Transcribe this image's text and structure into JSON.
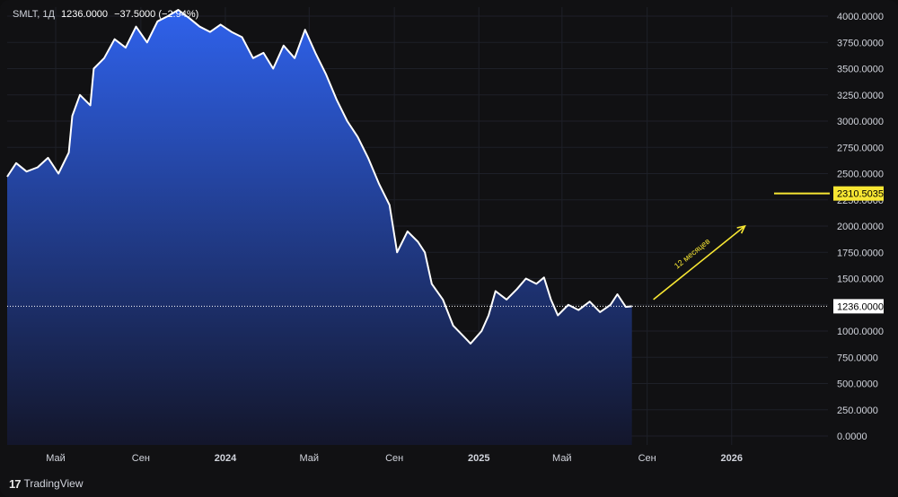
{
  "legend": {
    "symbol": "SMLT, 1Д",
    "price": "1236.0000",
    "change": "−37.5000 (−2.94%)"
  },
  "brand": {
    "name": "TradingView"
  },
  "colors": {
    "background": "#111113",
    "price_line": "#ffffff",
    "area_top": "#2f62ec",
    "area_bottom": "#13162b",
    "axis_text": "#d1d4dc",
    "grid": "#1e2028",
    "annotation": "#f7e633",
    "target_label_bg": "#f7e633",
    "current_label_bg": "#ffffff"
  },
  "chart_data": {
    "type": "area",
    "title": "",
    "xlabel": "",
    "ylabel": "",
    "ylim": [
      0,
      4000
    ],
    "yticks": [
      "4000.0000",
      "3750.0000",
      "3500.0000",
      "3250.0000",
      "3000.0000",
      "2750.0000",
      "2500.0000",
      "2250.0000",
      "2000.0000",
      "1750.0000",
      "1500.0000",
      "1250.0000",
      "1000.0000",
      "750.0000",
      "500.0000",
      "250.0000",
      "0.0000"
    ],
    "ytick_values": [
      4000,
      3750,
      3500,
      3250,
      3000,
      2750,
      2500,
      2250,
      2000,
      1750,
      1500,
      1250,
      1000,
      750,
      500,
      250,
      0
    ],
    "xticks": [
      {
        "date": "2023-05-01",
        "label": "Май",
        "bold": false
      },
      {
        "date": "2023-09-01",
        "label": "Сен",
        "bold": false
      },
      {
        "date": "2024-01-01",
        "label": "2024",
        "bold": true
      },
      {
        "date": "2024-05-01",
        "label": "Май",
        "bold": false
      },
      {
        "date": "2024-09-01",
        "label": "Сен",
        "bold": false
      },
      {
        "date": "2025-01-01",
        "label": "2025",
        "bold": true
      },
      {
        "date": "2025-05-01",
        "label": "Май",
        "bold": false
      },
      {
        "date": "2025-09-01",
        "label": "Сен",
        "bold": false
      },
      {
        "date": "2026-01-01",
        "label": "2026",
        "bold": true
      }
    ],
    "xrange": [
      "2023-02-20",
      "2026-05-20"
    ],
    "grid": true,
    "series": [
      {
        "values": [
          [
            "2023-02-20",
            2470
          ],
          [
            "2023-03-05",
            2600
          ],
          [
            "2023-03-20",
            2520
          ],
          [
            "2023-04-05",
            2560
          ],
          [
            "2023-04-20",
            2650
          ],
          [
            "2023-05-05",
            2500
          ],
          [
            "2023-05-20",
            2700
          ],
          [
            "2023-05-25",
            3050
          ],
          [
            "2023-06-05",
            3250
          ],
          [
            "2023-06-20",
            3150
          ],
          [
            "2023-06-25",
            3500
          ],
          [
            "2023-07-10",
            3600
          ],
          [
            "2023-07-25",
            3780
          ],
          [
            "2023-08-10",
            3700
          ],
          [
            "2023-08-25",
            3900
          ],
          [
            "2023-09-10",
            3750
          ],
          [
            "2023-09-25",
            3950
          ],
          [
            "2023-10-10",
            4000
          ],
          [
            "2023-10-25",
            4060
          ],
          [
            "2023-11-10",
            3980
          ],
          [
            "2023-11-25",
            3900
          ],
          [
            "2023-12-10",
            3850
          ],
          [
            "2023-12-25",
            3920
          ],
          [
            "2024-01-10",
            3850
          ],
          [
            "2024-01-25",
            3800
          ],
          [
            "2024-02-10",
            3600
          ],
          [
            "2024-02-25",
            3650
          ],
          [
            "2024-03-10",
            3500
          ],
          [
            "2024-03-25",
            3720
          ],
          [
            "2024-04-10",
            3600
          ],
          [
            "2024-04-25",
            3870
          ],
          [
            "2024-05-10",
            3650
          ],
          [
            "2024-05-25",
            3450
          ],
          [
            "2024-06-10",
            3200
          ],
          [
            "2024-06-25",
            3000
          ],
          [
            "2024-07-10",
            2850
          ],
          [
            "2024-07-25",
            2650
          ],
          [
            "2024-08-10",
            2400
          ],
          [
            "2024-08-25",
            2200
          ],
          [
            "2024-09-05",
            1750
          ],
          [
            "2024-09-20",
            1950
          ],
          [
            "2024-10-05",
            1850
          ],
          [
            "2024-10-15",
            1750
          ],
          [
            "2024-10-25",
            1450
          ],
          [
            "2024-11-10",
            1300
          ],
          [
            "2024-11-25",
            1050
          ],
          [
            "2024-12-10",
            950
          ],
          [
            "2024-12-20",
            880
          ],
          [
            "2025-01-05",
            1000
          ],
          [
            "2025-01-15",
            1150
          ],
          [
            "2025-01-25",
            1380
          ],
          [
            "2025-02-10",
            1300
          ],
          [
            "2025-02-25",
            1400
          ],
          [
            "2025-03-10",
            1500
          ],
          [
            "2025-03-25",
            1450
          ],
          [
            "2025-04-05",
            1510
          ],
          [
            "2025-04-15",
            1300
          ],
          [
            "2025-04-25",
            1150
          ],
          [
            "2025-05-10",
            1250
          ],
          [
            "2025-05-25",
            1200
          ],
          [
            "2025-06-10",
            1280
          ],
          [
            "2025-06-25",
            1180
          ],
          [
            "2025-07-10",
            1250
          ],
          [
            "2025-07-20",
            1350
          ],
          [
            "2025-08-01",
            1230
          ],
          [
            "2025-08-10",
            1236
          ]
        ]
      }
    ],
    "price_line": {
      "value": 1236,
      "label": "1236.0000"
    },
    "target": {
      "value": 2310.5035,
      "label": "2310.5035"
    },
    "annotation": {
      "text": "12 месяцев",
      "from": {
        "date": "2025-09-10",
        "value": 1300
      },
      "to": {
        "date": "2026-01-20",
        "value": 2000
      }
    }
  }
}
